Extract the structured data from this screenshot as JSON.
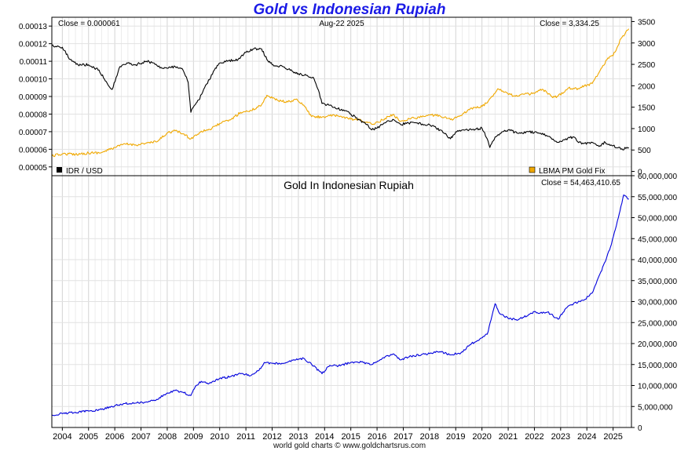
{
  "title": "Gold vs Indonesian Rupiah",
  "footer": "world gold charts © www.goldchartsrus.com",
  "chart_data": [
    {
      "type": "line",
      "panel": "top",
      "date_label": "Aug-22  2025",
      "left_close_label": "Close = 0.000061",
      "right_close_label": "Close = 3,334.25",
      "grid": true,
      "y_left": {
        "lim": [
          4.5e-05,
          0.000135
        ],
        "ticks": [
          5e-05,
          6e-05,
          7e-05,
          8e-05,
          9e-05,
          0.0001,
          0.00011,
          0.00012,
          0.00013
        ],
        "tick_labels": [
          "0.00005",
          "0.00006",
          "0.00007",
          "0.00008",
          "0.00009",
          "0.00010",
          "0.00011",
          "0.00012",
          "0.00013"
        ]
      },
      "y_right": {
        "lim": [
          -100,
          3600
        ],
        "ticks": [
          0,
          500,
          1000,
          1500,
          2000,
          2500,
          3000,
          3500
        ],
        "tick_labels": [
          "0",
          "500",
          "1000",
          "1500",
          "2000",
          "2500",
          "3000",
          "3500"
        ]
      },
      "series": [
        {
          "name": "IDR / USD",
          "axis": "left",
          "color": "#000000",
          "x": [
            2003.6,
            2004.0,
            2004.3,
            2004.6,
            2005.0,
            2005.4,
            2005.6,
            2005.9,
            2006.2,
            2006.5,
            2006.8,
            2007.2,
            2007.5,
            2007.8,
            2008.0,
            2008.3,
            2008.6,
            2008.8,
            2008.9,
            2009.0,
            2009.2,
            2009.5,
            2009.8,
            2010.0,
            2010.3,
            2010.7,
            2011.0,
            2011.3,
            2011.6,
            2011.8,
            2012.0,
            2012.4,
            2012.8,
            2013.0,
            2013.3,
            2013.6,
            2013.8,
            2013.9,
            2014.2,
            2014.5,
            2014.8,
            2015.0,
            2015.3,
            2015.6,
            2015.8,
            2016.0,
            2016.3,
            2016.6,
            2016.9,
            2017.2,
            2017.5,
            2017.8,
            2018.0,
            2018.4,
            2018.8,
            2019.0,
            2019.3,
            2019.6,
            2020.0,
            2020.2,
            2020.3,
            2020.5,
            2020.8,
            2021.0,
            2021.4,
            2021.8,
            2022.2,
            2022.6,
            2022.9,
            2023.2,
            2023.5,
            2023.8,
            2024.2,
            2024.5,
            2024.7,
            2025.0,
            2025.3,
            2025.6
          ],
          "y": [
            0.000119,
            0.000118,
            0.000111,
            0.000108,
            0.000108,
            0.000105,
            0.0001,
            9.4e-05,
            0.000107,
            0.000109,
            0.000108,
            0.00011,
            0.000109,
            0.000106,
            0.000106,
            0.000107,
            0.000105,
            9.8e-05,
            8.1e-05,
            8.4e-05,
            8.8e-05,
            9.7e-05,
            0.000105,
            0.000109,
            0.00011,
            0.000111,
            0.000115,
            0.000117,
            0.000117,
            0.000111,
            0.000108,
            0.000107,
            0.000104,
            0.000103,
            0.000102,
            0.0001,
            9.2e-05,
            8.6e-05,
            8.5e-05,
            8.3e-05,
            8.2e-05,
            8e-05,
            7.7e-05,
            7.4e-05,
            7.1e-05,
            7.2e-05,
            7.5e-05,
            7.7e-05,
            7.4e-05,
            7.5e-05,
            7.5e-05,
            7.4e-05,
            7.4e-05,
            7.1e-05,
            6.6e-05,
            7e-05,
            7.1e-05,
            7.1e-05,
            7.2e-05,
            6.6e-05,
            6.1e-05,
            6.7e-05,
            7e-05,
            7.1e-05,
            6.9e-05,
            7e-05,
            6.9e-05,
            6.7e-05,
            6.4e-05,
            6.6e-05,
            6.7e-05,
            6.3e-05,
            6.4e-05,
            6.2e-05,
            6.4e-05,
            6.2e-05,
            6e-05,
            6.1e-05
          ]
        },
        {
          "name": "LBMA PM Gold Fix",
          "axis": "right",
          "color": "#f0a800",
          "x": [
            2003.6,
            2004.0,
            2004.5,
            2005.0,
            2005.5,
            2006.0,
            2006.4,
            2006.8,
            2007.2,
            2007.6,
            2008.0,
            2008.3,
            2008.6,
            2008.9,
            2009.3,
            2009.7,
            2010.0,
            2010.4,
            2010.8,
            2011.2,
            2011.6,
            2011.8,
            2012.2,
            2012.6,
            2012.9,
            2013.2,
            2013.5,
            2013.9,
            2014.2,
            2014.6,
            2015.0,
            2015.4,
            2015.8,
            2016.2,
            2016.6,
            2016.9,
            2017.3,
            2017.7,
            2018.0,
            2018.4,
            2018.8,
            2019.2,
            2019.6,
            2019.9,
            2020.2,
            2020.6,
            2020.9,
            2021.2,
            2021.6,
            2022.0,
            2022.3,
            2022.7,
            2022.9,
            2023.3,
            2023.7,
            2023.9,
            2024.2,
            2024.5,
            2024.8,
            2025.0,
            2025.3,
            2025.6
          ],
          "y": [
            360,
            410,
            400,
            430,
            440,
            560,
            640,
            620,
            660,
            690,
            900,
            950,
            880,
            760,
            940,
            1000,
            1120,
            1200,
            1380,
            1420,
            1560,
            1780,
            1660,
            1620,
            1680,
            1550,
            1280,
            1270,
            1300,
            1290,
            1220,
            1190,
            1100,
            1200,
            1330,
            1170,
            1240,
            1270,
            1320,
            1300,
            1210,
            1300,
            1480,
            1490,
            1600,
            1930,
            1860,
            1760,
            1800,
            1820,
            1920,
            1720,
            1760,
            1950,
            1930,
            2000,
            2050,
            2350,
            2650,
            2700,
            3100,
            3330
          ]
        }
      ],
      "legend": [
        "IDR / USD",
        "LBMA PM Gold Fix"
      ]
    },
    {
      "type": "line",
      "panel": "bottom",
      "title": "Gold In Indonesian Rupiah",
      "close_label": "Close = 54,463,410.65",
      "grid": true,
      "y_right": {
        "lim": [
          0,
          60000000
        ],
        "ticks": [
          0,
          5000000,
          10000000,
          15000000,
          20000000,
          25000000,
          30000000,
          35000000,
          40000000,
          45000000,
          50000000,
          55000000,
          60000000
        ],
        "tick_labels": [
          "0",
          "5,000,000",
          "10,000,000",
          "15,000,000",
          "20,000,000",
          "25,000,000",
          "30,000,000",
          "35,000,000",
          "40,000,000",
          "45,000,000",
          "50,000,000",
          "55,000,000",
          "60,000,000"
        ]
      },
      "x_ticks": [
        2004,
        2005,
        2006,
        2007,
        2008,
        2009,
        2010,
        2011,
        2012,
        2013,
        2014,
        2015,
        2016,
        2017,
        2018,
        2019,
        2020,
        2021,
        2022,
        2023,
        2024,
        2025
      ],
      "x_tick_labels": [
        "2004",
        "2005",
        "2006",
        "2007",
        "2008",
        "2009",
        "2010",
        "2011",
        "2012",
        "2013",
        "2014",
        "2015",
        "2016",
        "2017",
        "2018",
        "2019",
        "2020",
        "2021",
        "2022",
        "2023",
        "2024",
        "2025"
      ],
      "x_lim": [
        2003.6,
        2025.7
      ],
      "series": [
        {
          "name": "Gold In Indonesian Rupiah",
          "color": "#0000dd",
          "x": [
            2003.6,
            2004.0,
            2004.5,
            2005.0,
            2005.5,
            2006.0,
            2006.4,
            2006.8,
            2007.2,
            2007.6,
            2008.0,
            2008.3,
            2008.6,
            2008.9,
            2009.1,
            2009.3,
            2009.6,
            2010.0,
            2010.4,
            2010.8,
            2011.2,
            2011.5,
            2011.7,
            2012.0,
            2012.3,
            2012.6,
            2012.9,
            2013.2,
            2013.5,
            2013.9,
            2014.2,
            2014.6,
            2015.0,
            2015.4,
            2015.8,
            2016.2,
            2016.6,
            2016.9,
            2017.3,
            2017.7,
            2018.0,
            2018.4,
            2018.8,
            2019.2,
            2019.6,
            2019.9,
            2020.2,
            2020.5,
            2020.7,
            2021.0,
            2021.3,
            2021.6,
            2022.0,
            2022.3,
            2022.5,
            2022.9,
            2023.2,
            2023.5,
            2023.9,
            2024.2,
            2024.5,
            2024.7,
            2024.9,
            2025.2,
            2025.4,
            2025.6
          ],
          "y": [
            3000000,
            3300000,
            3600000,
            3900000,
            4300000,
            5200000,
            5700000,
            5800000,
            6100000,
            6700000,
            8200000,
            8800000,
            8400000,
            7600000,
            10000000,
            11000000,
            10500000,
            11700000,
            12100000,
            12800000,
            12400000,
            13600000,
            15500000,
            15300000,
            15200000,
            15600000,
            16100000,
            16500000,
            15100000,
            12800000,
            14800000,
            14700000,
            15500000,
            15600000,
            15000000,
            16500000,
            17500000,
            16100000,
            17000000,
            17400000,
            17600000,
            18100000,
            17300000,
            17800000,
            20000000,
            20900000,
            22200000,
            29500000,
            27000000,
            26000000,
            25700000,
            26300000,
            27600000,
            27200000,
            27500000,
            25800000,
            28400000,
            29600000,
            30400000,
            32000000,
            36600000,
            39500000,
            43000000,
            50000000,
            55400000,
            54463410
          ]
        }
      ]
    }
  ]
}
